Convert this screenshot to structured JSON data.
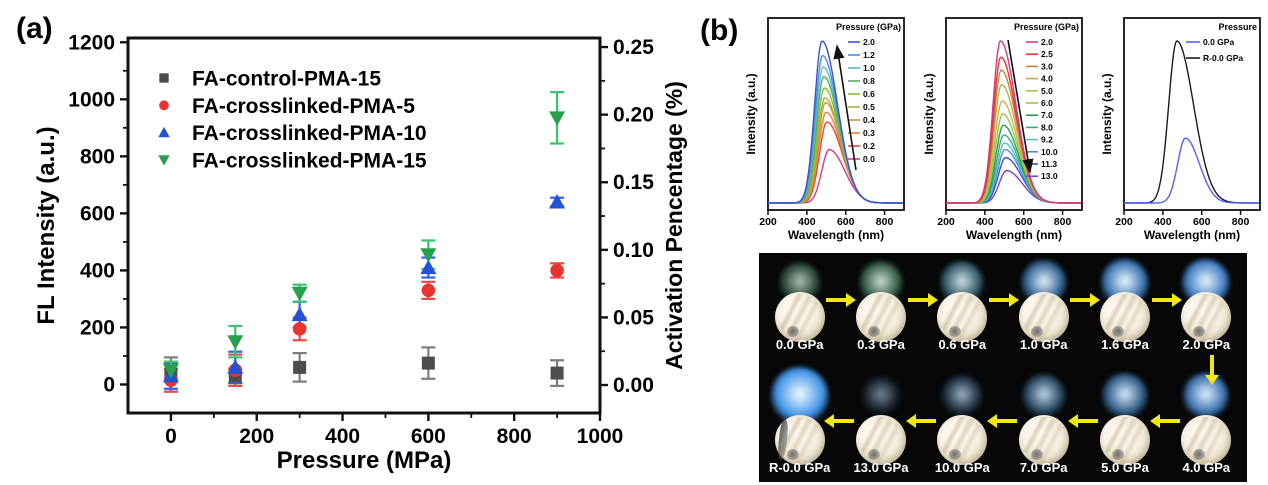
{
  "labels": {
    "a": "(a)",
    "b": "(b)"
  },
  "chart_data": [
    {
      "id": "fl-intensity-vs-pressure",
      "type": "scatter",
      "xlabel": "Pressure (MPa)",
      "ylabel_left": "FL Intensity (a.u.)",
      "ylabel_right": "Activation Pencentage (%)",
      "xlim": [
        -100,
        1000
      ],
      "ylim_left": [
        -100,
        1215
      ],
      "ylim_right": [
        -0.0207,
        0.2567
      ],
      "xticks": [
        0,
        200,
        400,
        600,
        800,
        1000
      ],
      "xticks_minor": [
        100,
        300,
        500,
        700,
        900
      ],
      "yticks_left": [
        0,
        200,
        400,
        600,
        800,
        1000,
        1200
      ],
      "yticks_left_minor": [
        100,
        300,
        500,
        700,
        900,
        1100
      ],
      "yticks_right": [
        "0.00",
        "0.05",
        "0.10",
        "0.15",
        "0.20",
        "0.25"
      ],
      "yticks_right_minor": [
        0.025,
        0.075,
        0.125,
        0.175,
        0.225
      ],
      "grid": false,
      "legend_position": "upper-left-inside",
      "x": [
        0,
        150,
        300,
        600,
        900
      ],
      "series": [
        {
          "name": "FA-control-PMA-15",
          "marker": "square",
          "color": "#4d4d4d",
          "error_color": "#7d7d7d",
          "values": [
            35,
            30,
            60,
            75,
            40
          ],
          "errors": [
            60,
            25,
            50,
            55,
            45
          ]
        },
        {
          "name": "FA-crosslinked-PMA-5",
          "marker": "circle",
          "color": "#e8332e",
          "error_color": "#ef4a44",
          "values": [
            15,
            50,
            195,
            330,
            400
          ],
          "errors": [
            40,
            55,
            40,
            30,
            25
          ]
        },
        {
          "name": "FA-crosslinked-PMA-10",
          "marker": "triangle-up",
          "color": "#2453d8",
          "error_color": "#2f62e8",
          "values": [
            30,
            60,
            245,
            410,
            640
          ],
          "errors": [
            45,
            55,
            45,
            35,
            15
          ]
        },
        {
          "name": "FA-crosslinked-PMA-15",
          "marker": "triangle-down",
          "color": "#2aa04f",
          "error_color": "#3cc36e",
          "values": [
            50,
            150,
            320,
            455,
            935
          ],
          "errors": [
            30,
            55,
            30,
            50,
            90
          ]
        }
      ]
    },
    {
      "id": "spectra-compression",
      "type": "line",
      "xlabel": "Wavelength (nm)",
      "ylabel": "Intensity (a.u.)",
      "xlim": [
        200,
        900
      ],
      "xticks": [
        200,
        400,
        600,
        800
      ],
      "legend_title": "Pressure (GPa)",
      "arrow": "up",
      "curves": [
        {
          "label": "2.0",
          "color": "#3a50c8",
          "peak": 1.0,
          "mu": 478
        },
        {
          "label": "1.2",
          "color": "#4b8fd8",
          "peak": 0.91,
          "mu": 481
        },
        {
          "label": "1.0",
          "color": "#52bfca",
          "peak": 0.84,
          "mu": 484
        },
        {
          "label": "0.8",
          "color": "#4cb05c",
          "peak": 0.78,
          "mu": 487
        },
        {
          "label": "0.6",
          "color": "#8aba3c",
          "peak": 0.71,
          "mu": 490
        },
        {
          "label": "0.5",
          "color": "#b7ab3a",
          "peak": 0.65,
          "mu": 493
        },
        {
          "label": "0.4",
          "color": "#c9993e",
          "peak": 0.62,
          "mu": 496
        },
        {
          "label": "0.3",
          "color": "#e0833c",
          "peak": 0.56,
          "mu": 499
        },
        {
          "label": "0.2",
          "color": "#e2453a",
          "peak": 0.5,
          "mu": 503
        },
        {
          "label": "0.0",
          "color": "#d43a80",
          "peak": 0.33,
          "mu": 515
        }
      ]
    },
    {
      "id": "spectra-high-pressure",
      "type": "line",
      "xlabel": "Wavelength (nm)",
      "ylabel": "Intensity (a.u.)",
      "xlim": [
        200,
        900
      ],
      "xticks": [
        200,
        400,
        600,
        800
      ],
      "legend_title": "Pressure (GPa)",
      "arrow": "down",
      "curves": [
        {
          "label": "2.0",
          "color": "#d43a80",
          "peak": 1.0,
          "mu": 480
        },
        {
          "label": "2.5",
          "color": "#e23a2e",
          "peak": 0.9,
          "mu": 482
        },
        {
          "label": "3.0",
          "color": "#c97f3c",
          "peak": 0.82,
          "mu": 484
        },
        {
          "label": "4.0",
          "color": "#c9a84c",
          "peak": 0.73,
          "mu": 486
        },
        {
          "label": "5.0",
          "color": "#bdbb4e",
          "peak": 0.63,
          "mu": 489
        },
        {
          "label": "6.0",
          "color": "#9cc44e",
          "peak": 0.55,
          "mu": 492
        },
        {
          "label": "7.0",
          "color": "#2ea04a",
          "peak": 0.48,
          "mu": 495
        },
        {
          "label": "8.0",
          "color": "#35ab8c",
          "peak": 0.42,
          "mu": 498
        },
        {
          "label": "9.2",
          "color": "#52bfca",
          "peak": 0.37,
          "mu": 501
        },
        {
          "label": "10.0",
          "color": "#4b8fd8",
          "peak": 0.33,
          "mu": 504
        },
        {
          "label": "11.3",
          "color": "#3a50c8",
          "peak": 0.28,
          "mu": 507
        },
        {
          "label": "13.0",
          "color": "#7a3fc8",
          "peak": 0.2,
          "mu": 512
        }
      ]
    },
    {
      "id": "spectra-recovery",
      "type": "line",
      "xlabel": "Wavelength (nm)",
      "ylabel": "Intensity (a.u.)",
      "xlim": [
        200,
        900
      ],
      "xticks": [
        200,
        400,
        600,
        800
      ],
      "legend_title": "Pressure",
      "arrow": "none",
      "curves": [
        {
          "label": "0.0 GPa",
          "color": "#5663f0",
          "peak": 0.4,
          "mu": 516,
          "sl": 40,
          "sr": 72
        },
        {
          "label": "R-0.0 GPa",
          "color": "#1c1c1c",
          "peak": 1.0,
          "mu": 472,
          "sl": 42,
          "sr": 86
        }
      ]
    }
  ],
  "photo_panel": {
    "background": "#070707",
    "arrow_color": "#f2e613",
    "rows": [
      {
        "direction": "right",
        "cells": [
          {
            "label": "0.0 GPa",
            "blob": {
              "d": 42,
              "c1": "#c9e3d2",
              "c2": "#2e4f3e",
              "o": 0.85
            }
          },
          {
            "label": "0.3 GPa",
            "blob": {
              "d": 44,
              "c1": "#dcf0e4",
              "c2": "#36604c",
              "o": 0.92
            }
          },
          {
            "label": "0.6 GPa",
            "blob": {
              "d": 44,
              "c1": "#daeef2",
              "c2": "#335a68",
              "o": 0.95
            }
          },
          {
            "label": "1.0 GPa",
            "blob": {
              "d": 46,
              "c1": "#e4f3ff",
              "c2": "#2f5e8e",
              "o": 1
            }
          },
          {
            "label": "1.6 GPa",
            "blob": {
              "d": 48,
              "c1": "#eaf6ff",
              "c2": "#3a74b2",
              "o": 1
            }
          },
          {
            "label": "2.0 GPa",
            "blob": {
              "d": 48,
              "c1": "#e6f4ff",
              "c2": "#3f7cc2",
              "o": 1
            }
          }
        ]
      },
      {
        "direction": "left",
        "cells": [
          {
            "label": "R-0.0 GPa",
            "band": true,
            "blob": {
              "d": 58,
              "c1": "#f2fbff",
              "c2": "#3f93e8",
              "o": 1
            }
          },
          {
            "label": "13.0 GPa",
            "blob": {
              "d": 40,
              "c1": "#8ea4b8",
              "c2": "#1a2530",
              "o": 0.8
            }
          },
          {
            "label": "10.0 GPa",
            "blob": {
              "d": 42,
              "c1": "#b0c8dc",
              "c2": "#1f3346",
              "o": 0.88
            }
          },
          {
            "label": "7.0 GPa",
            "blob": {
              "d": 44,
              "c1": "#c8e0f4",
              "c2": "#264862",
              "o": 0.95
            }
          },
          {
            "label": "5.0 GPa",
            "blob": {
              "d": 46,
              "c1": "#d6eafc",
              "c2": "#2f5a86",
              "o": 1
            }
          },
          {
            "label": "4.0 GPa",
            "blob": {
              "d": 46,
              "c1": "#def0ff",
              "c2": "#3a70ae",
              "o": 1
            }
          }
        ]
      }
    ],
    "connector": {
      "direction": "down",
      "from": "2.0 GPa",
      "to": "4.0 GPa"
    }
  }
}
